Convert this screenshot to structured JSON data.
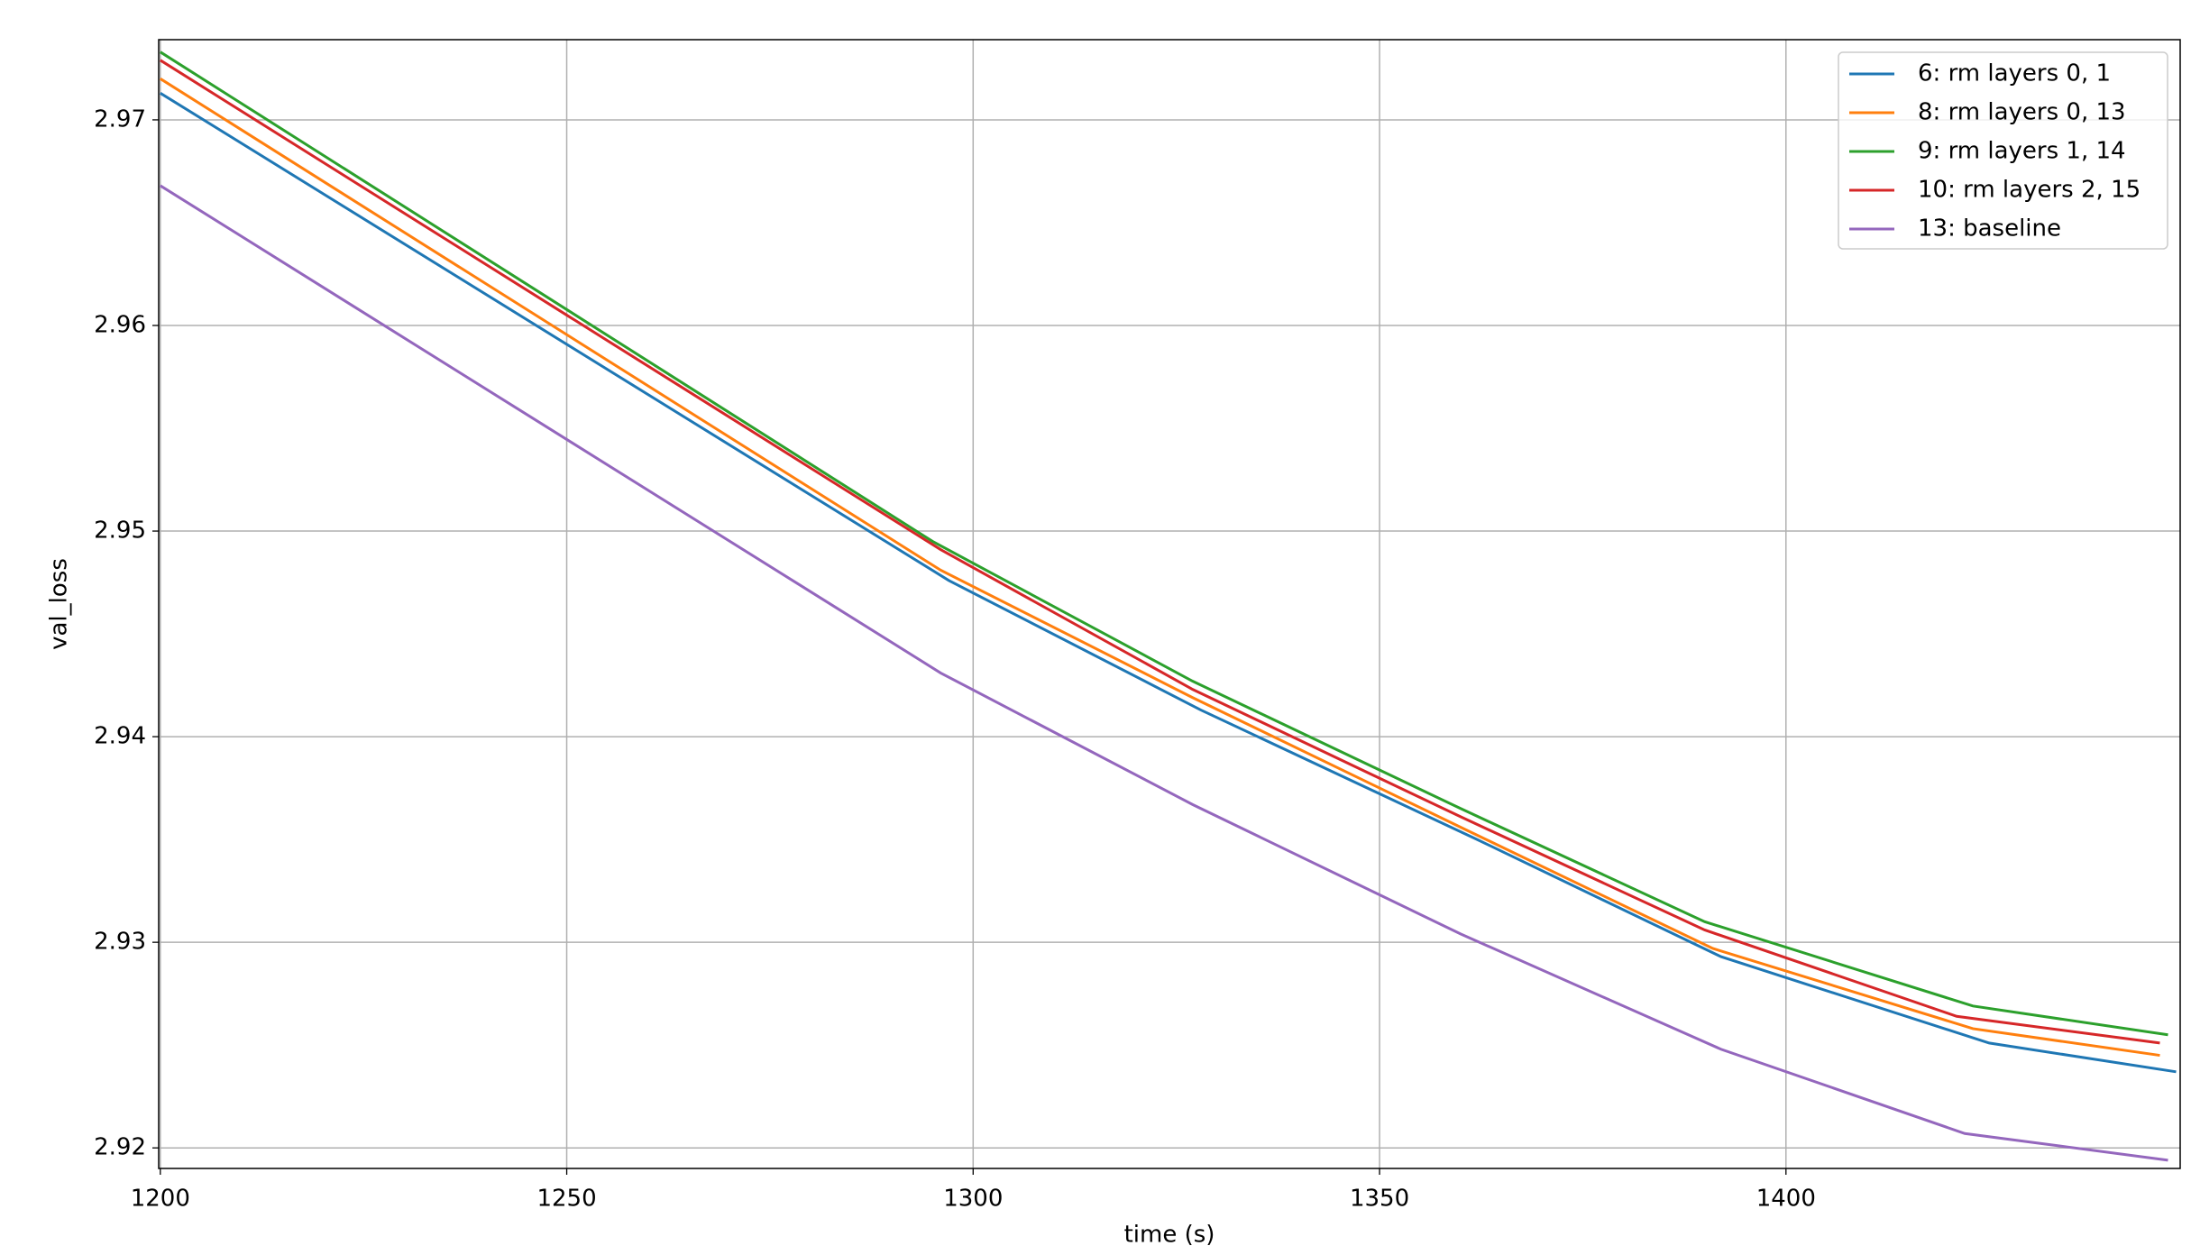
{
  "chart_data": {
    "type": "line",
    "xlabel": "time (s)",
    "ylabel": "val_loss",
    "xlim": [
      1199.8,
      1448.5
    ],
    "ylim": [
      2.919,
      2.9739
    ],
    "xticks": [
      1200,
      1250,
      1300,
      1350,
      1400
    ],
    "yticks": [
      2.92,
      2.93,
      2.94,
      2.95,
      2.96,
      2.97
    ],
    "grid": true,
    "legend": "upper right",
    "series": [
      {
        "name": "6: rm layers 0, 1",
        "color": "#1f77b4",
        "x": [
          1200,
          1297,
          1328,
          1362,
          1392,
          1425,
          1448
        ],
        "values": [
          2.9713,
          2.9476,
          2.9413,
          2.935,
          2.9293,
          2.9251,
          2.9237
        ]
      },
      {
        "name": "8: rm layers 0, 13",
        "color": "#ff7f0e",
        "x": [
          1200,
          1296,
          1327,
          1361,
          1391,
          1423,
          1446
        ],
        "values": [
          2.972,
          2.9481,
          2.9419,
          2.9354,
          2.9297,
          2.9258,
          2.9245
        ]
      },
      {
        "name": "9: rm layers 1, 14",
        "color": "#2ca02c",
        "x": [
          1200,
          1295,
          1327,
          1360,
          1390,
          1423,
          1447
        ],
        "values": [
          2.9733,
          2.9495,
          2.9427,
          2.9365,
          2.931,
          2.9269,
          2.9255
        ]
      },
      {
        "name": "10: rm layers 2, 15",
        "color": "#d62728",
        "x": [
          1200,
          1296,
          1327,
          1360,
          1390,
          1421,
          1446
        ],
        "values": [
          2.9729,
          2.9491,
          2.9423,
          2.9361,
          2.9306,
          2.9264,
          2.9251
        ]
      },
      {
        "name": "13: baseline",
        "color": "#9467bd",
        "x": [
          1200,
          1296,
          1327,
          1360,
          1392,
          1422,
          1447
        ],
        "values": [
          2.9668,
          2.9431,
          2.9367,
          2.9304,
          2.9248,
          2.9207,
          2.9194
        ]
      }
    ]
  }
}
